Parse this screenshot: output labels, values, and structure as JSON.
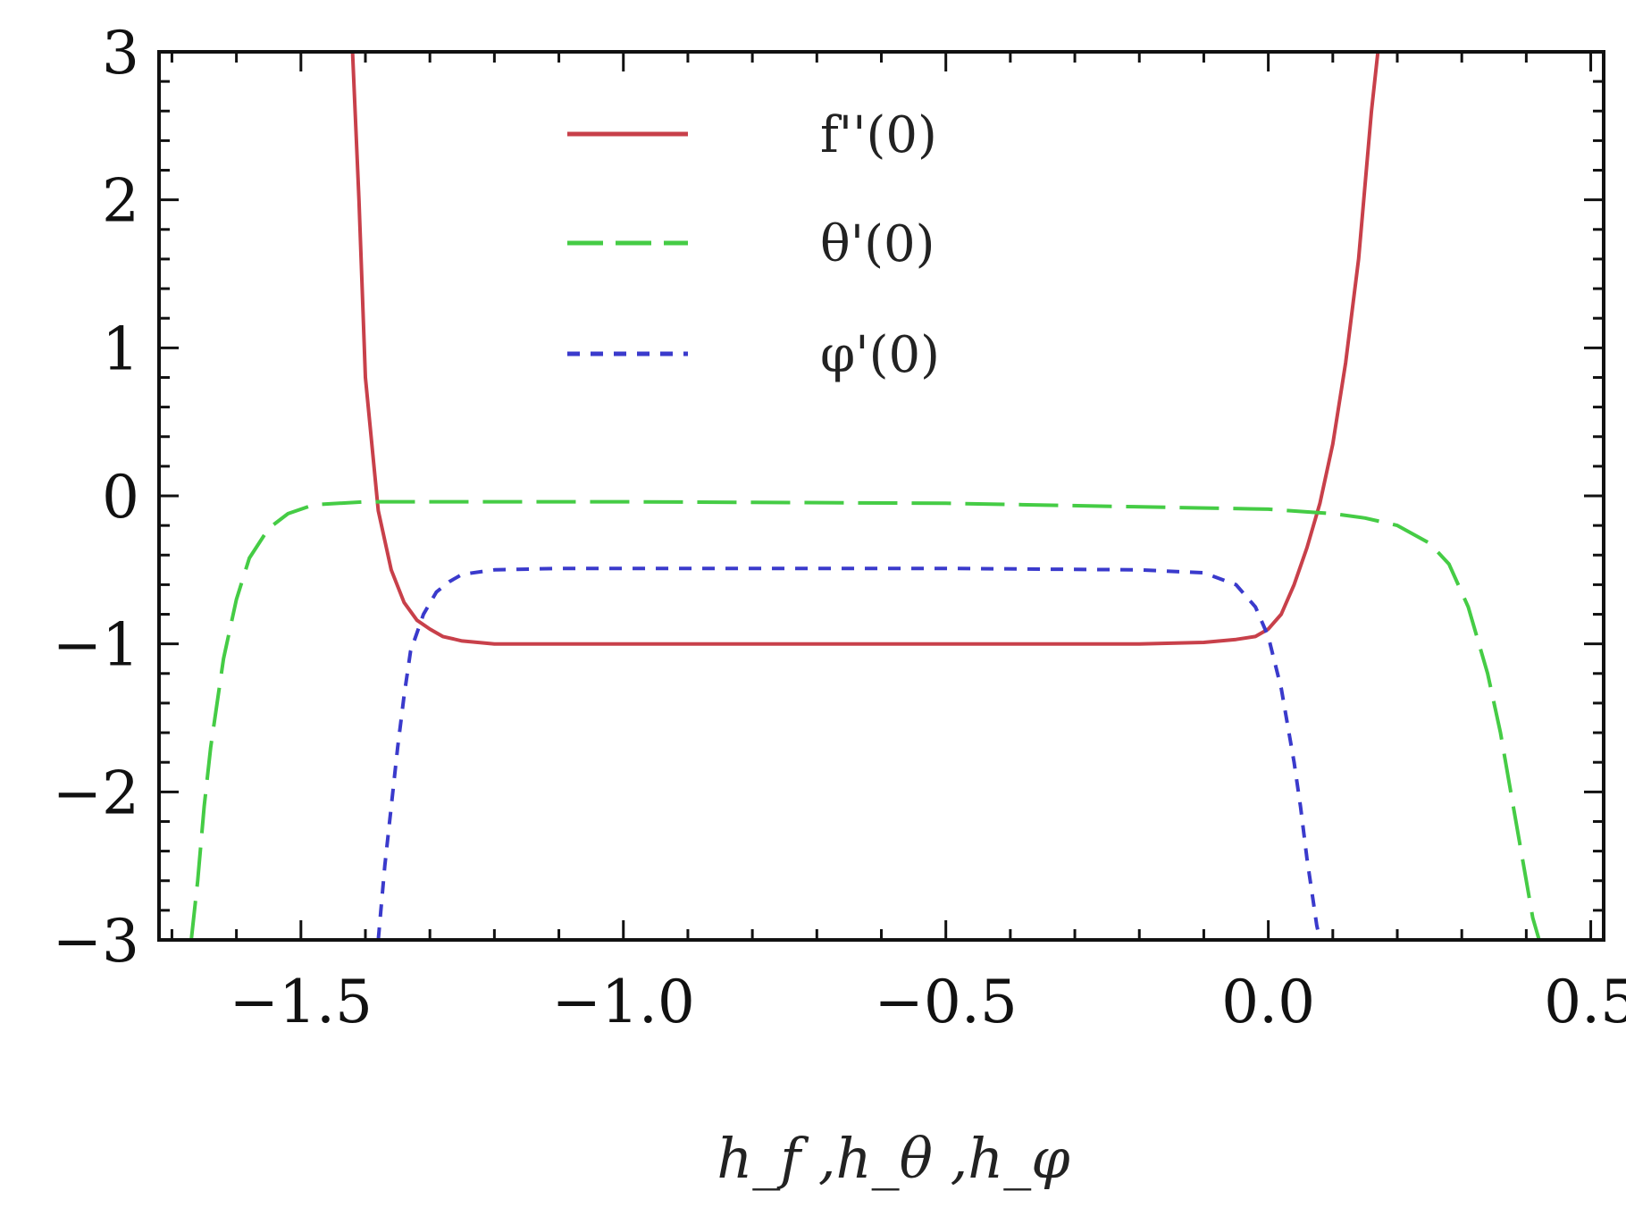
{
  "chart_data": {
    "type": "line",
    "xlabel": "h_f ,h_θ ,h_φ",
    "ylabel": "",
    "xlim": [
      -1.72,
      0.52
    ],
    "ylim": [
      -3,
      3
    ],
    "x_ticks": [
      -1.5,
      -1.0,
      -0.5,
      0.0,
      0.5
    ],
    "x_tick_labels": [
      "−1.5",
      "−1.0",
      "−0.5",
      "0.0",
      "0.5"
    ],
    "y_ticks": [
      -3,
      -2,
      -1,
      0,
      1,
      2,
      3
    ],
    "y_tick_labels": [
      "−3",
      "−2",
      "−1",
      "0",
      "1",
      "2",
      "3"
    ],
    "grid": false,
    "legend_position": "top-center",
    "series": [
      {
        "name": "f''(0)",
        "color": "#c8404a",
        "dash": "solid",
        "x": [
          -1.42,
          -1.41,
          -1.4,
          -1.38,
          -1.36,
          -1.34,
          -1.32,
          -1.3,
          -1.28,
          -1.25,
          -1.2,
          -1.0,
          -0.8,
          -0.6,
          -0.4,
          -0.2,
          -0.1,
          -0.05,
          -0.02,
          0.0,
          0.02,
          0.04,
          0.06,
          0.08,
          0.1,
          0.12,
          0.14,
          0.15,
          0.16,
          0.17
        ],
        "y": [
          3.0,
          2.0,
          0.8,
          -0.1,
          -0.5,
          -0.72,
          -0.84,
          -0.9,
          -0.95,
          -0.98,
          -1.0,
          -1.0,
          -1.0,
          -1.0,
          -1.0,
          -1.0,
          -0.99,
          -0.97,
          -0.95,
          -0.9,
          -0.8,
          -0.6,
          -0.35,
          -0.05,
          0.35,
          0.9,
          1.6,
          2.1,
          2.6,
          3.0
        ]
      },
      {
        "name": "θ'(0)",
        "color": "#45cc45",
        "dash": "long-dash",
        "x": [
          -1.67,
          -1.66,
          -1.65,
          -1.64,
          -1.62,
          -1.6,
          -1.58,
          -1.55,
          -1.52,
          -1.48,
          -1.4,
          -1.0,
          -0.5,
          0.0,
          0.1,
          0.15,
          0.2,
          0.25,
          0.28,
          0.31,
          0.34,
          0.36,
          0.38,
          0.4,
          0.41,
          0.42
        ],
        "y": [
          -3.0,
          -2.6,
          -2.1,
          -1.7,
          -1.1,
          -0.7,
          -0.42,
          -0.22,
          -0.12,
          -0.06,
          -0.04,
          -0.04,
          -0.05,
          -0.09,
          -0.12,
          -0.15,
          -0.2,
          -0.32,
          -0.46,
          -0.75,
          -1.2,
          -1.6,
          -2.1,
          -2.6,
          -2.85,
          -3.0
        ]
      },
      {
        "name": "φ'(0)",
        "color": "#3a3acc",
        "dash": "short-dash",
        "x": [
          -1.38,
          -1.37,
          -1.36,
          -1.35,
          -1.34,
          -1.33,
          -1.31,
          -1.29,
          -1.27,
          -1.25,
          -1.2,
          -1.1,
          -0.8,
          -0.5,
          -0.2,
          -0.1,
          -0.05,
          -0.02,
          0.0,
          0.02,
          0.04,
          0.05,
          0.06,
          0.07,
          0.075,
          0.08
        ],
        "y": [
          -3.0,
          -2.5,
          -2.1,
          -1.7,
          -1.35,
          -1.05,
          -0.8,
          -0.65,
          -0.58,
          -0.53,
          -0.5,
          -0.49,
          -0.49,
          -0.49,
          -0.5,
          -0.52,
          -0.6,
          -0.75,
          -0.95,
          -1.3,
          -1.8,
          -2.1,
          -2.45,
          -2.75,
          -2.9,
          -3.0
        ]
      }
    ]
  }
}
